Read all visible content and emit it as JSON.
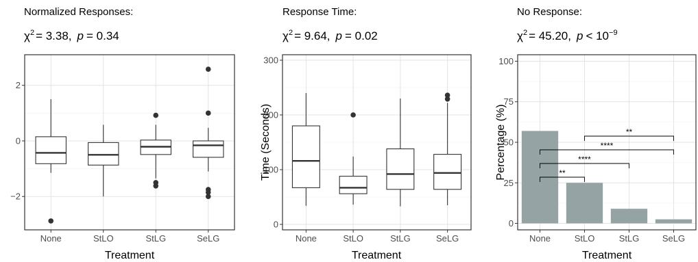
{
  "chart_data": [
    {
      "type": "boxplot",
      "title": "Normalized Responses:",
      "stat": {
        "chi_symbol": "χ",
        "chi_sup": "2",
        "chi_value": "= 3.38,",
        "p_symbol": "p",
        "p_value": "= 0.34"
      },
      "xlabel": "Treatment",
      "ylabel": "",
      "categories": [
        "None",
        "StLO",
        "StLG",
        "SeLG"
      ],
      "ylim": [
        -3.2,
        3.1
      ],
      "yticks": [
        -2,
        0,
        2
      ],
      "ytick_labels": [
        "−2",
        "0",
        "2"
      ],
      "boxes": [
        {
          "min": -1.15,
          "q1": -0.82,
          "median": -0.43,
          "q3": 0.15,
          "max": 1.5,
          "outliers": [
            -2.88
          ]
        },
        {
          "min": -2.0,
          "q1": -0.87,
          "median": -0.5,
          "q3": -0.06,
          "max": 0.58,
          "outliers": []
        },
        {
          "min": -1.35,
          "q1": -0.49,
          "median": -0.21,
          "q3": 0.03,
          "max": 0.58,
          "outliers": [
            0.92,
            -1.5,
            -1.62
          ]
        },
        {
          "min": -1.1,
          "q1": -0.59,
          "median": -0.16,
          "q3": 0.0,
          "max": 0.47,
          "outliers": [
            2.58,
            1.0,
            -1.75,
            -1.85,
            -2.0
          ]
        }
      ]
    },
    {
      "type": "boxplot",
      "title": "Response Time:",
      "stat": {
        "chi_symbol": "χ",
        "chi_sup": "2",
        "chi_value": "= 9.64,",
        "p_symbol": "p",
        "p_value": "= 0.02"
      },
      "xlabel": "Treatment",
      "ylabel": "Time (Seconds)",
      "categories": [
        "None",
        "StLO",
        "StLG",
        "SeLG"
      ],
      "ylim": [
        -10,
        310
      ],
      "yticks": [
        0,
        100,
        200,
        300
      ],
      "ytick_labels": [
        "0",
        "100",
        "200",
        "300"
      ],
      "boxes": [
        {
          "min": 34,
          "q1": 67,
          "median": 116,
          "q3": 180,
          "max": 240,
          "outliers": []
        },
        {
          "min": 36,
          "q1": 56,
          "median": 67,
          "q3": 88,
          "max": 124,
          "outliers": [
            200
          ]
        },
        {
          "min": 33,
          "q1": 64,
          "median": 92,
          "q3": 138,
          "max": 230,
          "outliers": []
        },
        {
          "min": 35,
          "q1": 64,
          "median": 94,
          "q3": 128,
          "max": 222,
          "outliers": [
            236,
            229
          ]
        }
      ]
    },
    {
      "type": "bar",
      "title": "No Response:",
      "stat": {
        "chi_symbol": "χ",
        "chi_sup": "2",
        "chi_value": "= 45.20,",
        "p_symbol": "p",
        "p_value": "< 10",
        "p_exp": "−9"
      },
      "xlabel": "Treatment",
      "ylabel": "Percentage (%)",
      "categories": [
        "None",
        "StLO",
        "StLG",
        "SeLG"
      ],
      "values": [
        57,
        25,
        9,
        2.5
      ],
      "color": "#95a3a4",
      "ylim": [
        -4,
        104
      ],
      "yticks": [
        0,
        25,
        50,
        75,
        100
      ],
      "ytick_labels": [
        "0",
        "25",
        "50",
        "75",
        "100"
      ],
      "significance": [
        {
          "from": "None",
          "to": "StLO",
          "label": "**"
        },
        {
          "from": "None",
          "to": "StLG",
          "label": "****"
        },
        {
          "from": "None",
          "to": "SeLG",
          "label": "****"
        },
        {
          "from": "StLO",
          "to": "SeLG",
          "label": "**"
        }
      ]
    }
  ]
}
